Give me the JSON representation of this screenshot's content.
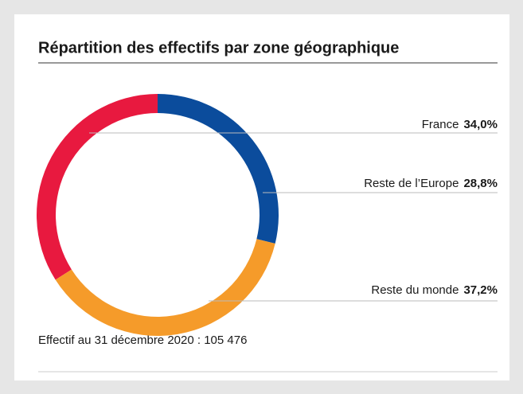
{
  "chart_data": {
    "type": "pie",
    "title": "Répartition des effectifs par zone géographique",
    "categories": [
      "France",
      "Reste de l’Europe",
      "Reste du monde"
    ],
    "values": [
      34.0,
      28.8,
      37.2
    ],
    "value_labels": [
      "34,0%",
      "28,8%",
      "37,2%"
    ],
    "colors": [
      "#e8193f",
      "#0b4c9c",
      "#f59b2a"
    ],
    "donut": true,
    "footnote": "Effectif au 31 décembre 2020 : 105 476"
  }
}
